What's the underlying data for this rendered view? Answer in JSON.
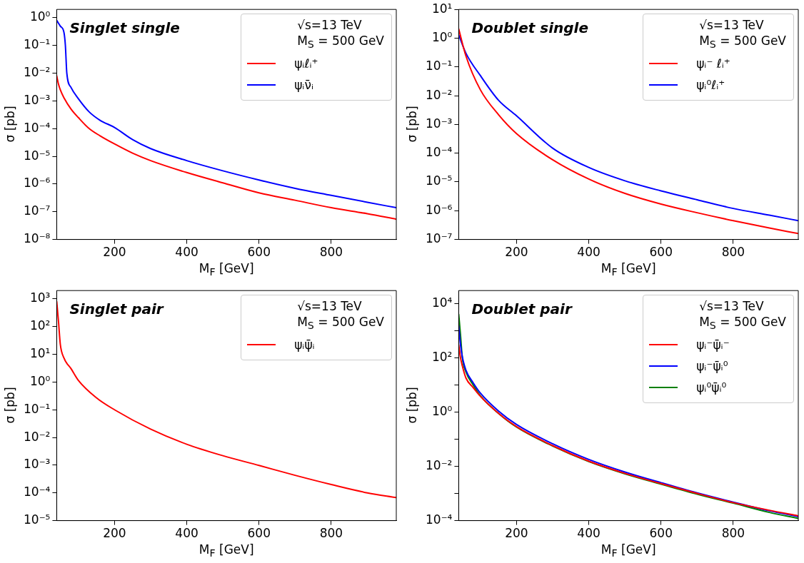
{
  "chart_data": [
    {
      "type": "line",
      "title": "Singlet single",
      "xlabel": "M$_{F}$ [GeV]",
      "ylabel": "σ [pb]",
      "annotations": [
        "√s=13 TeV",
        "M$_{S}$ = 500 GeV"
      ],
      "legend": "top right",
      "log": "y",
      "grid": false,
      "xlim": [
        40,
        980
      ],
      "ylim": [
        1e-08,
        2
      ],
      "xticks": [
        200,
        400,
        600,
        800
      ],
      "yticks": [
        {
          "value": 1e-08,
          "label": "10⁻⁸"
        },
        {
          "value": 1e-07,
          "label": "10⁻⁷"
        },
        {
          "value": 1e-06,
          "label": "10⁻⁶"
        },
        {
          "value": 1e-05,
          "label": "10⁻⁵"
        },
        {
          "value": 0.0001,
          "label": "10⁻⁴"
        },
        {
          "value": 0.001,
          "label": "10⁻³"
        },
        {
          "value": 0.01,
          "label": "10⁻²"
        },
        {
          "value": 0.1,
          "label": "10⁻¹"
        },
        {
          "value": 1,
          "label": "10⁰"
        }
      ],
      "series": [
        {
          "name": "ψᵢℓᵢ⁺",
          "color": "#ff0000",
          "x": [
            40,
            45,
            50,
            60,
            80,
            100,
            130,
            160,
            200,
            250,
            300,
            400,
            500,
            600,
            700,
            800,
            900,
            980
          ],
          "values": [
            0.008,
            0.004,
            0.0025,
            0.0013,
            0.0005,
            0.00025,
            0.0001,
            5.5e-05,
            2.8e-05,
            1.3e-05,
            7e-06,
            2.6e-06,
            1.1e-06,
            4.8e-07,
            2.6e-07,
            1.4e-07,
            8.5e-08,
            5.4e-08
          ]
        },
        {
          "name": "ψᵢν̄ᵢ",
          "color": "#0000ff",
          "x": [
            40,
            50,
            60,
            64,
            68,
            80,
            100,
            130,
            160,
            200,
            250,
            300,
            400,
            500,
            600,
            700,
            800,
            900,
            980
          ],
          "values": [
            0.8,
            0.5,
            0.3,
            0.1,
            0.01,
            0.003,
            0.0012,
            0.0004,
            0.0002,
            0.00011,
            4e-05,
            1.9e-05,
            7e-06,
            3e-06,
            1.4e-06,
            7e-07,
            3.9e-07,
            2.2e-07,
            1.4e-07
          ]
        }
      ]
    },
    {
      "type": "line",
      "title": "Doublet single",
      "xlabel": "M$_{F}$ [GeV]",
      "ylabel": "σ [pb]",
      "annotations": [
        "√s=13 TeV",
        "M$_{S}$ = 500 GeV"
      ],
      "legend": "top right",
      "log": "y",
      "grid": false,
      "xlim": [
        40,
        980
      ],
      "ylim": [
        1e-07,
        10
      ],
      "xticks": [
        200,
        400,
        600,
        800
      ],
      "yticks": [
        {
          "value": 1e-07,
          "label": "10⁻⁷"
        },
        {
          "value": 1e-06,
          "label": "10⁻⁶"
        },
        {
          "value": 1e-05,
          "label": "10⁻⁵"
        },
        {
          "value": 0.0001,
          "label": "10⁻⁴"
        },
        {
          "value": 0.001,
          "label": "10⁻³"
        },
        {
          "value": 0.01,
          "label": "10⁻²"
        },
        {
          "value": 0.1,
          "label": "10⁻¹"
        },
        {
          "value": 1,
          "label": "10⁰"
        },
        {
          "value": 10,
          "label": "10¹"
        }
      ],
      "series": [
        {
          "name": "ψᵢ⁻ ℓᵢ⁺",
          "color": "#ff0000",
          "x": [
            40,
            60,
            100,
            150,
            200,
            300,
            400,
            500,
            600,
            700,
            800,
            900,
            980
          ],
          "values": [
            2.1,
            0.24,
            0.016,
            0.0022,
            0.00048,
            5.9e-05,
            1.26e-05,
            4e-06,
            1.7e-06,
            8.5e-07,
            4.5e-07,
            2.5e-07,
            1.6e-07
          ]
        },
        {
          "name": "ψᵢ⁰ℓᵢ⁺",
          "color": "#0000ff",
          "x": [
            40,
            60,
            100,
            150,
            200,
            300,
            400,
            500,
            600,
            700,
            800,
            900,
            980
          ],
          "values": [
            1.3,
            0.3,
            0.05,
            0.007,
            0.002,
            0.00015,
            3.2e-05,
            1.1e-05,
            4.9e-06,
            2.4e-06,
            1.2e-06,
            7e-07,
            4.5e-07
          ]
        }
      ]
    },
    {
      "type": "line",
      "title": "Singlet pair",
      "xlabel": "M$_{F}$ [GeV]",
      "ylabel": "σ [pb]",
      "annotations": [
        "√s=13 TeV",
        "M$_{S}$ = 500 GeV"
      ],
      "legend": "top right",
      "log": "y",
      "grid": false,
      "xlim": [
        40,
        980
      ],
      "ylim": [
        1e-05,
        2000
      ],
      "xticks": [
        200,
        400,
        600,
        800
      ],
      "yticks": [
        {
          "value": 1e-05,
          "label": "10⁻⁵"
        },
        {
          "value": 0.0001,
          "label": "10⁻⁴"
        },
        {
          "value": 0.001,
          "label": "10⁻³"
        },
        {
          "value": 0.01,
          "label": "10⁻²"
        },
        {
          "value": 0.1,
          "label": "10⁻¹"
        },
        {
          "value": 1,
          "label": "10⁰"
        },
        {
          "value": 10,
          "label": "10¹"
        },
        {
          "value": 100,
          "label": "10²"
        },
        {
          "value": 1000,
          "label": "10³"
        }
      ],
      "series": [
        {
          "name": "ψᵢψ̄ᵢ",
          "color": "#ff0000",
          "x": [
            40,
            45,
            50,
            60,
            80,
            100,
            150,
            200,
            300,
            400,
            500,
            600,
            700,
            800,
            900,
            980
          ],
          "values": [
            800,
            150,
            23,
            7.4,
            3,
            1.15,
            0.27,
            0.1,
            0.02,
            0.0057,
            0.0022,
            0.00098,
            0.00043,
            0.0002,
            0.0001,
            6.8e-05
          ]
        }
      ]
    },
    {
      "type": "line",
      "title": "Doublet pair",
      "xlabel": "M$_{F}$ [GeV]",
      "ylabel": "σ [pb]",
      "annotations": [
        "√s=13 TeV",
        "M$_{S}$ = 500 GeV"
      ],
      "legend": "top right",
      "log": "y",
      "grid": false,
      "xlim": [
        40,
        980
      ],
      "ylim": [
        0.0001,
        30000
      ],
      "xticks": [
        200,
        400,
        600,
        800
      ],
      "yticks": [
        {
          "value": 0.0001,
          "label": "10⁻⁴"
        },
        {
          "value": 0.001,
          "label": null
        },
        {
          "value": 0.01,
          "label": "10⁻²"
        },
        {
          "value": 0.1,
          "label": null
        },
        {
          "value": 1,
          "label": "10⁰"
        },
        {
          "value": 10,
          "label": null
        },
        {
          "value": 100,
          "label": "10²"
        },
        {
          "value": 1000,
          "label": null
        },
        {
          "value": 10000,
          "label": "10⁴"
        }
      ],
      "series": [
        {
          "name": "ψᵢ⁻ψ̄ᵢ⁻",
          "color": "#ff0000",
          "x": [
            40,
            45,
            50,
            60,
            80,
            100,
            150,
            200,
            300,
            400,
            500,
            600,
            700,
            800,
            900,
            980
          ],
          "values": [
            300,
            100,
            50,
            18,
            8,
            3.8,
            0.9,
            0.29,
            0.058,
            0.0155,
            0.0055,
            0.0023,
            0.001,
            0.00046,
            0.00024,
            0.00015
          ]
        },
        {
          "name": "ψᵢ⁻ψ̄ᵢ⁰",
          "color": "#0000ff",
          "x": [
            40,
            45,
            50,
            60,
            80,
            100,
            150,
            200,
            300,
            400,
            500,
            600,
            700,
            800,
            900,
            980
          ],
          "values": [
            1500,
            300,
            110,
            35,
            12,
            5,
            1.1,
            0.35,
            0.068,
            0.018,
            0.0062,
            0.0025,
            0.00105,
            0.00048,
            0.00023,
            0.00014
          ]
        },
        {
          "name": "ψᵢ⁰ψ̄ᵢ⁰",
          "color": "#008000",
          "x": [
            40,
            45,
            50,
            60,
            80,
            100,
            150,
            200,
            300,
            400,
            500,
            600,
            700,
            800,
            900,
            980
          ],
          "values": [
            4000,
            700,
            100,
            30,
            10,
            4,
            0.9,
            0.28,
            0.056,
            0.015,
            0.0053,
            0.0022,
            0.00094,
            0.00044,
            0.0002,
            0.00012
          ]
        }
      ]
    }
  ]
}
